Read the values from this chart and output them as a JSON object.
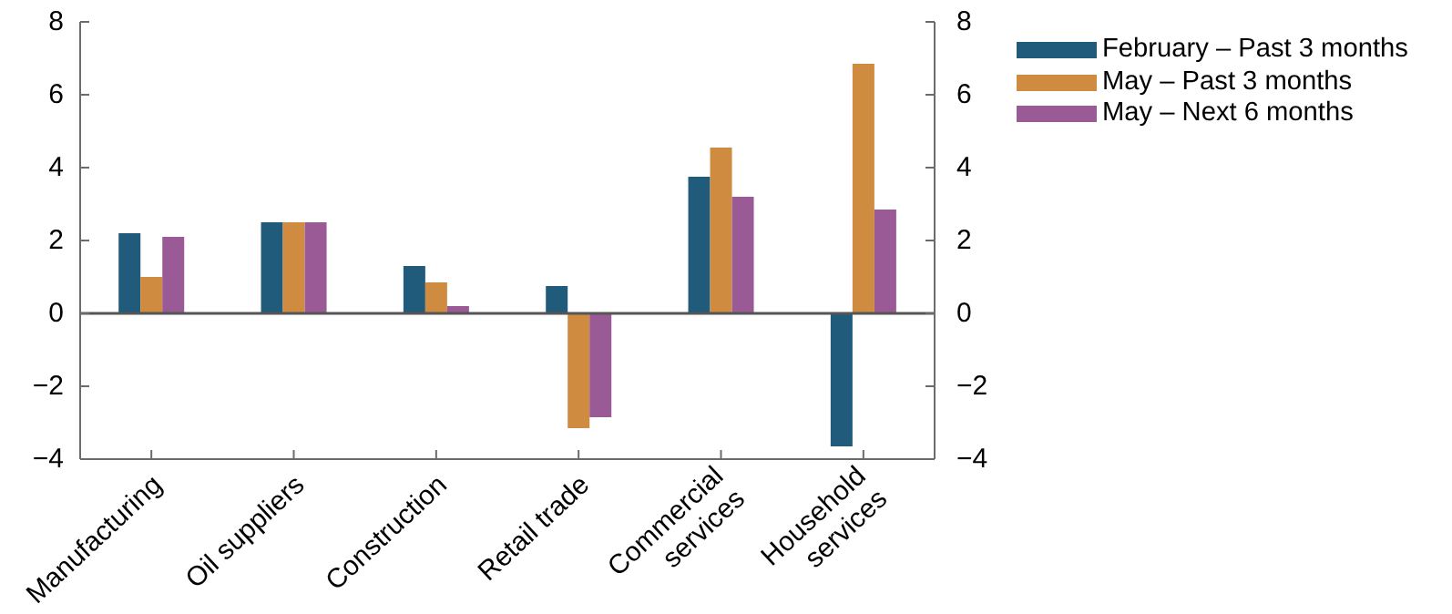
{
  "chart_data": {
    "type": "bar",
    "categories": [
      "Manufacturing",
      "Oil suppliers",
      "Construction",
      "Retail trade",
      "Commercial services",
      "Household services"
    ],
    "series": [
      {
        "name": "February – Past 3 months",
        "color": "#215b7b",
        "values": [
          2.2,
          2.5,
          1.3,
          0.75,
          3.75,
          -3.65
        ]
      },
      {
        "name": "May – Past 3 months",
        "color": "#cf8b3f",
        "values": [
          1.0,
          2.5,
          0.85,
          -3.15,
          4.55,
          6.85
        ]
      },
      {
        "name": "May – Next 6 months",
        "color": "#995a96",
        "values": [
          2.1,
          2.5,
          0.2,
          -2.85,
          3.2,
          2.85
        ]
      }
    ],
    "ylim": [
      -4,
      8
    ],
    "yticks": [
      -4,
      -2,
      0,
      2,
      4,
      6,
      8
    ],
    "y2lim": [
      -4,
      8
    ],
    "y2ticks": [
      -4,
      -2,
      0,
      2,
      4,
      6,
      8
    ],
    "ref_lines": [
      {
        "axis": "y",
        "value": 0,
        "color": "#555555"
      }
    ],
    "legend": "top right"
  }
}
